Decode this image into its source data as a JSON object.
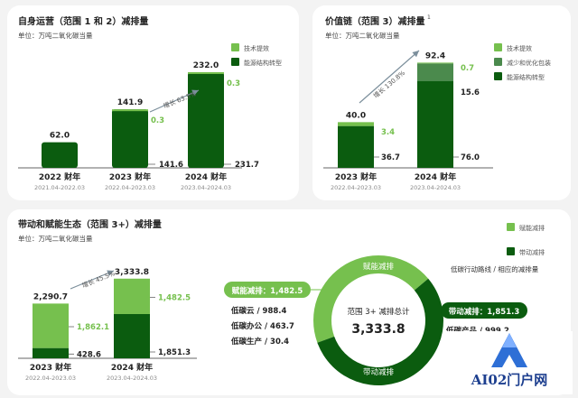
{
  "colors": {
    "dark": "#0b5c0f",
    "light": "#76c04e",
    "mid": "#4b8a4d",
    "arrow": "#7c8f9c",
    "text": "#222222",
    "sub": "#8a8a8a"
  },
  "panel1": {
    "title": "自身运营（范围 1 和 2）减排量",
    "unit": "单位：万吨二氧化碳当量",
    "legend": [
      "技术提效",
      "能源结构转型"
    ],
    "growth": "增长 63.5%"
  },
  "panel2": {
    "title": "价值链（范围 3）减排量",
    "superscript": "1",
    "unit": "单位：万吨二氧化碳当量",
    "legend": [
      "技术提效",
      "减少和优化包装",
      "能源结构转型"
    ],
    "growth": "增长 130.8%"
  },
  "panel3": {
    "title": "带动和赋能生态（范围 3+）减排量",
    "unit": "单位：万吨二氧化碳当量",
    "legend": [
      "赋能减排",
      "带动减排"
    ],
    "legend_note": "低碳行动路线 / 相应的减排量",
    "growth": "增长 45.5%",
    "donut_center_label": "范围 3+ 减排总计",
    "donut_center_value": "3,333.8",
    "donut_label_top": "赋能减排",
    "donut_label_bottom": "带动减排",
    "enable_pill": "赋能减排：1,482.5",
    "drive_pill": "带动减排：1,851.3",
    "enable_items": [
      "低碳云 / 988.4",
      "低碳办公 / 463.7",
      "低碳生产 / 30.4"
    ],
    "drive_items": [
      "低碳产品 / 999.2"
    ]
  },
  "watermark": "AI02门户网",
  "chart_data": [
    {
      "type": "bar",
      "title": "自身运营（范围 1 和 2）减排量",
      "ylabel": "单位：万吨二氧化碳当量",
      "categories": [
        "2022 财年",
        "2023 财年",
        "2024 财年"
      ],
      "periods": [
        "2021.04-2022.03",
        "2022.04-2023.03",
        "2023.04-2024.03"
      ],
      "totals": [
        62.0,
        141.9,
        232.0
      ],
      "total_labels": [
        "62.0",
        "141.9",
        "232.0"
      ],
      "series": [
        {
          "name": "技术提效",
          "values": [
            null,
            0.3,
            0.3
          ],
          "labels": [
            "",
            "0.3",
            "0.3"
          ]
        },
        {
          "name": "能源结构转型",
          "values": [
            null,
            141.6,
            231.7
          ],
          "labels": [
            "",
            "141.6",
            "231.7"
          ]
        }
      ],
      "ylim": [
        0,
        240
      ]
    },
    {
      "type": "bar",
      "title": "价值链（范围 3）减排量",
      "ylabel": "单位：万吨二氧化碳当量",
      "categories": [
        "2023 财年",
        "2024 财年"
      ],
      "periods": [
        "2022.04-2023.03",
        "2023.04-2024.03"
      ],
      "totals": [
        40.0,
        92.4
      ],
      "total_labels": [
        "40.0",
        "92.4"
      ],
      "series": [
        {
          "name": "技术提效",
          "values": [
            3.4,
            0.7
          ],
          "labels": [
            "3.4",
            "0.7"
          ]
        },
        {
          "name": "减少和优化包装",
          "values": [
            0,
            15.6
          ],
          "labels": [
            "",
            "15.6"
          ]
        },
        {
          "name": "能源结构转型",
          "values": [
            36.7,
            76.0
          ],
          "labels": [
            "36.7",
            "76.0"
          ]
        }
      ],
      "ylim": [
        0,
        95
      ]
    },
    {
      "type": "bar",
      "title": "带动和赋能生态（范围 3+）减排量",
      "ylabel": "单位：万吨二氧化碳当量",
      "categories": [
        "2023 财年",
        "2024 财年"
      ],
      "periods": [
        "2022.04-2023.03",
        "2023.04-2024.03"
      ],
      "totals": [
        2290.7,
        3333.8
      ],
      "total_labels": [
        "2,290.7",
        "3,333.8"
      ],
      "series": [
        {
          "name": "赋能减排",
          "values": [
            1862.1,
            1482.5
          ],
          "labels": [
            "1,862.1",
            "1,482.5"
          ]
        },
        {
          "name": "带动减排",
          "values": [
            428.6,
            1851.3
          ],
          "labels": [
            "428.6",
            "1,851.3"
          ]
        }
      ],
      "ylim": [
        0,
        3400
      ]
    },
    {
      "type": "pie",
      "title": "范围 3+ 减排总计",
      "categories": [
        "赋能减排",
        "带动减排"
      ],
      "values": [
        1482.5,
        1851.3
      ],
      "total": 3333.8
    }
  ]
}
